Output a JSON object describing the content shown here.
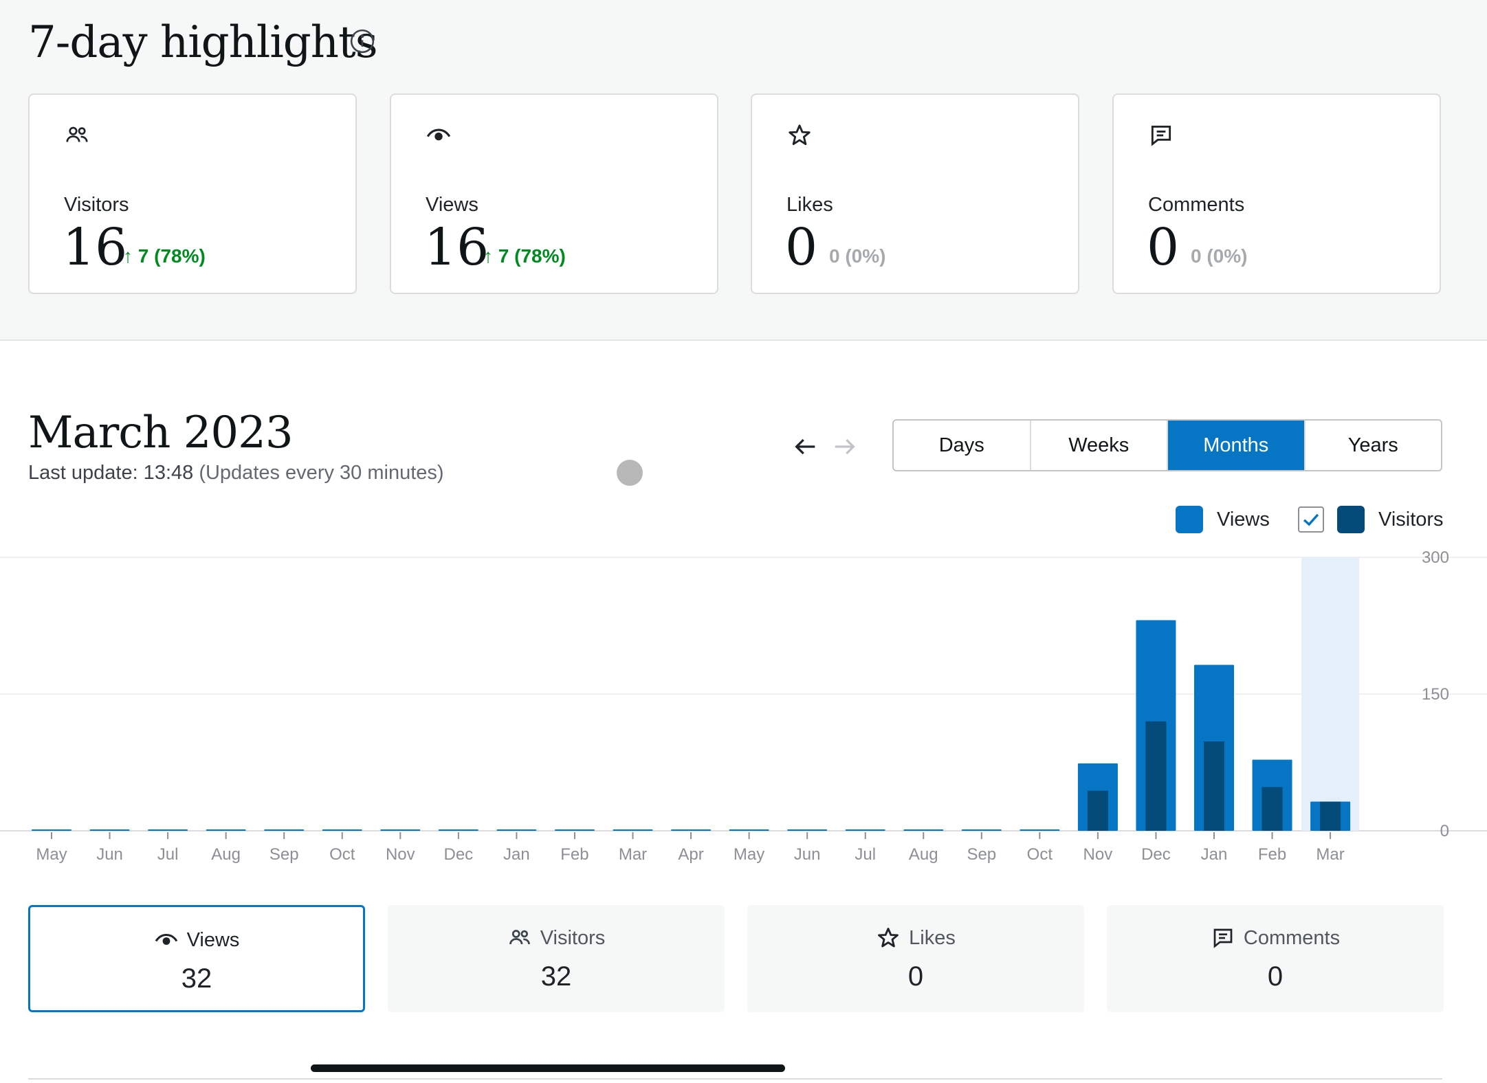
{
  "highlights": {
    "title": "7-day highlights",
    "cards": [
      {
        "icon": "people-icon",
        "label": "Visitors",
        "value": "16",
        "change": "↑ 7 (78%)",
        "trend": "up"
      },
      {
        "icon": "eye-icon",
        "label": "Views",
        "value": "16",
        "change": "↑ 7 (78%)",
        "trend": "up"
      },
      {
        "icon": "star-icon",
        "label": "Likes",
        "value": "0",
        "change": "0 (0%)",
        "trend": "flat"
      },
      {
        "icon": "comment-icon",
        "label": "Comments",
        "value": "0",
        "change": "0 (0%)",
        "trend": "flat"
      }
    ]
  },
  "period": {
    "title": "March 2023",
    "last_update": "Last update: 13:48",
    "update_note": "(Updates every 30 minutes)"
  },
  "interval_tabs": [
    {
      "label": "Days",
      "active": false
    },
    {
      "label": "Weeks",
      "active": false
    },
    {
      "label": "Months",
      "active": true
    },
    {
      "label": "Years",
      "active": false
    }
  ],
  "legend": {
    "views_label": "Views",
    "visitors_label": "Visitors",
    "visitors_checked": true
  },
  "colors": {
    "accent": "#0675c4",
    "views": "#0675c4",
    "visitors": "#044b7a",
    "positive": "#008a20",
    "highlight_band": "#e5eff9"
  },
  "chart_data": {
    "type": "bar",
    "categories": [
      "May",
      "Jun",
      "Jul",
      "Aug",
      "Sep",
      "Oct",
      "Nov",
      "Dec",
      "Jan",
      "Feb",
      "Mar",
      "Apr",
      "May",
      "Jun",
      "Jul",
      "Aug",
      "Sep",
      "Oct",
      "Nov",
      "Dec",
      "Jan",
      "Feb",
      "Mar"
    ],
    "series": [
      {
        "name": "Views",
        "values": [
          0,
          0,
          0,
          0,
          0,
          0,
          0,
          0,
          0,
          0,
          0,
          0,
          0,
          0,
          0,
          0,
          0,
          0,
          74,
          231,
          182,
          78,
          32
        ]
      },
      {
        "name": "Visitors",
        "values": [
          0,
          0,
          0,
          0,
          0,
          0,
          0,
          0,
          0,
          0,
          0,
          0,
          0,
          0,
          0,
          0,
          0,
          0,
          44,
          120,
          98,
          48,
          32
        ]
      }
    ],
    "ylim": [
      0,
      300
    ],
    "yticks": [
      "0",
      "150",
      "300"
    ],
    "selected_category_index": 22,
    "grid": true
  },
  "summary": [
    {
      "icon": "eye-icon",
      "label": "Views",
      "value": "32",
      "active": true
    },
    {
      "icon": "people-icon",
      "label": "Visitors",
      "value": "32",
      "active": false
    },
    {
      "icon": "star-icon",
      "label": "Likes",
      "value": "0",
      "active": false
    },
    {
      "icon": "comment-icon",
      "label": "Comments",
      "value": "0",
      "active": false
    }
  ]
}
